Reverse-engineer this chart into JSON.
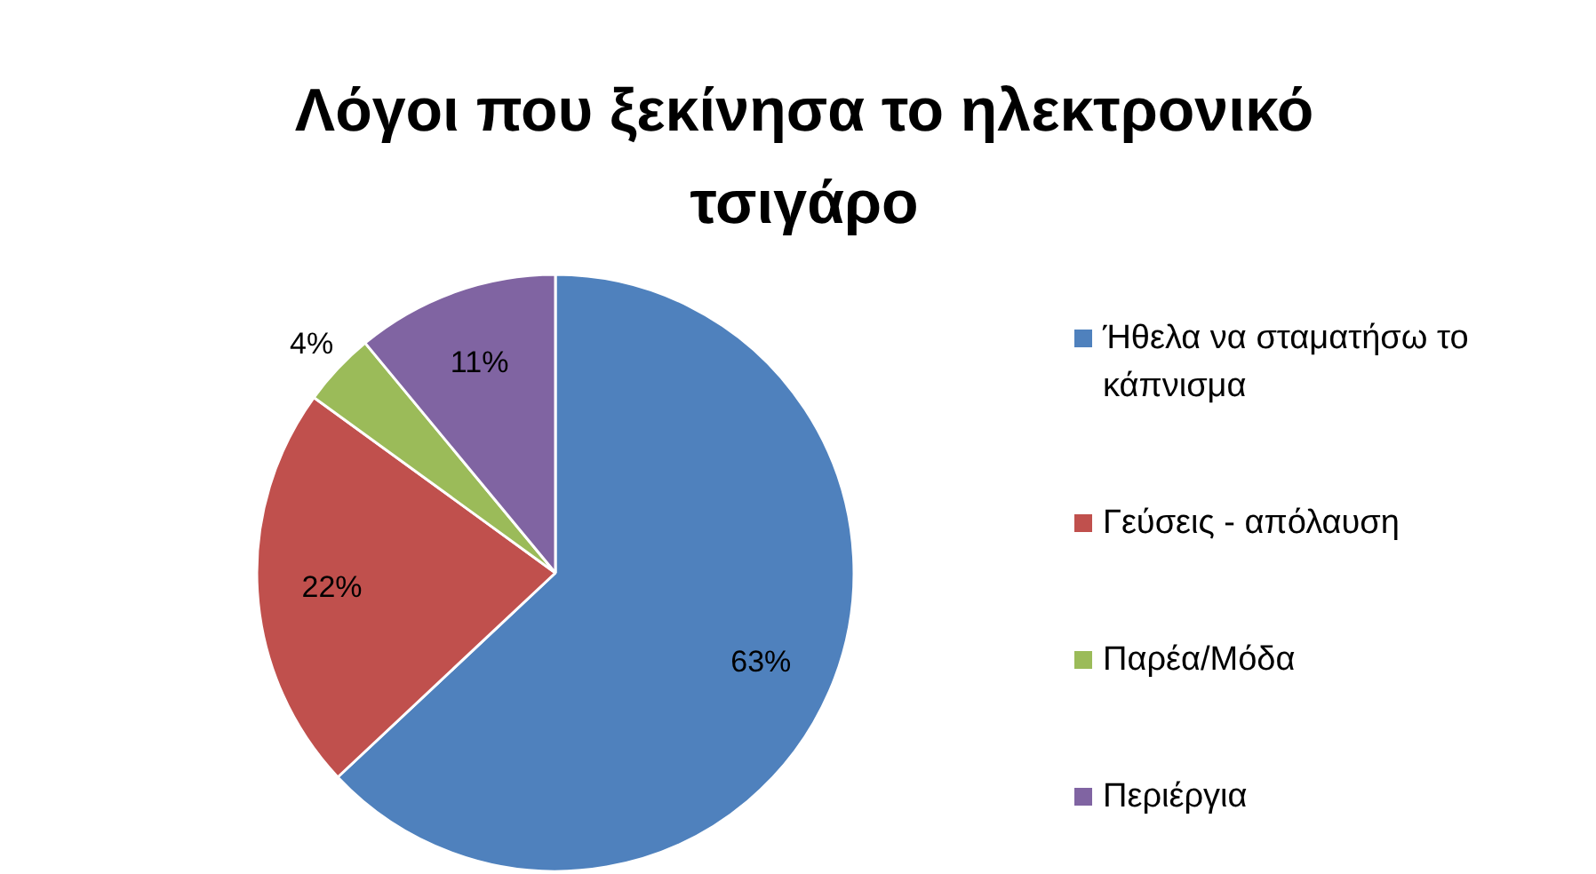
{
  "chart_data": {
    "type": "pie",
    "title": "Λόγοι που ξεκίνησα το ηλεκτρονικό τσιγάρο",
    "categories": [
      "Ήθελα να σταματήσω το κάπνισμα",
      "Γεύσεις - απόλαυση",
      "Παρέα/Μόδα",
      "Περιέργια"
    ],
    "values": [
      63,
      22,
      4,
      11
    ],
    "colors": [
      "#4f81bd",
      "#c0504d",
      "#9bbb59",
      "#8064a2"
    ],
    "value_labels": [
      "63%",
      "22%",
      "4%",
      "11%"
    ],
    "legend": "right"
  }
}
